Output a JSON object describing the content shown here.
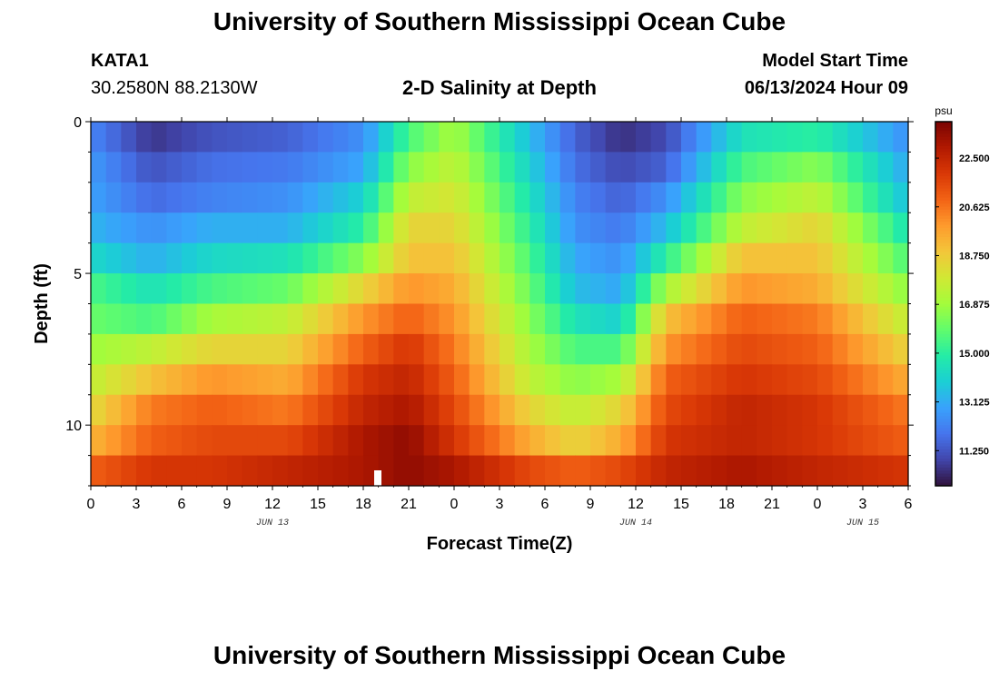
{
  "header": {
    "title": "University of Southern Mississippi Ocean Cube",
    "station": "KATA1",
    "coordinates": "30.2580N  88.2130W",
    "subtitle": "2-D Salinity at Depth",
    "model_start_label": "Model Start Time",
    "model_start_value": "06/13/2024 Hour 09"
  },
  "footer": {
    "title": "University of Southern Mississippi Ocean Cube"
  },
  "chart_data": {
    "type": "heatmap",
    "title": "2-D Salinity at Depth",
    "xlabel": "Forecast Time(Z)",
    "ylabel": "Depth (ft)",
    "x_range_hours": [
      0,
      54
    ],
    "y_range_ft": [
      0,
      12
    ],
    "x_ticks": [
      {
        "hour": 0,
        "label": "0"
      },
      {
        "hour": 3,
        "label": "3"
      },
      {
        "hour": 6,
        "label": "6"
      },
      {
        "hour": 9,
        "label": "9"
      },
      {
        "hour": 12,
        "label": "12"
      },
      {
        "hour": 15,
        "label": "15"
      },
      {
        "hour": 18,
        "label": "18"
      },
      {
        "hour": 21,
        "label": "21"
      },
      {
        "hour": 24,
        "label": "0"
      },
      {
        "hour": 27,
        "label": "3"
      },
      {
        "hour": 30,
        "label": "6"
      },
      {
        "hour": 33,
        "label": "9"
      },
      {
        "hour": 36,
        "label": "12"
      },
      {
        "hour": 39,
        "label": "15"
      },
      {
        "hour": 42,
        "label": "18"
      },
      {
        "hour": 45,
        "label": "21"
      },
      {
        "hour": 48,
        "label": "0"
      },
      {
        "hour": 51,
        "label": "3"
      },
      {
        "hour": 54,
        "label": "6"
      }
    ],
    "date_labels": [
      {
        "hour": 12,
        "label": "JUN 13"
      },
      {
        "hour": 36,
        "label": "JUN 14"
      },
      {
        "hour": 51,
        "label": "JUN 15"
      }
    ],
    "y_ticks": [
      {
        "depth": 0,
        "label": "0"
      },
      {
        "depth": 5,
        "label": "5"
      },
      {
        "depth": 10,
        "label": "10"
      }
    ],
    "colorbar": {
      "unit": "psu",
      "min": 9.9,
      "max": 23.9,
      "ticks": [
        "22.500",
        "20.625",
        "18.750",
        "16.875",
        "15.000",
        "13.125",
        "11.250"
      ],
      "colors": [
        "#30123b",
        "#4145ab",
        "#4675ed",
        "#39a2fc",
        "#1bcfd4",
        "#24eca6",
        "#61fc6c",
        "#a4fc3b",
        "#d1e834",
        "#f3c63a",
        "#fe9b2d",
        "#f36315",
        "#d93806",
        "#b11901",
        "#7a0403"
      ]
    },
    "depth_layers_ft": [
      0.5,
      1.5,
      2.5,
      3.5,
      4.5,
      5.5,
      6.5,
      7.5,
      8.5,
      9.5,
      10.5,
      11.5
    ],
    "time_nodes_hours": [
      0,
      4,
      8,
      13,
      18,
      21,
      24,
      29,
      32,
      35,
      38,
      43,
      48,
      54
    ],
    "salinity_psu": [
      [
        12.3,
        10.6,
        11.2,
        11.5,
        12.5,
        15.5,
        17.0,
        13.5,
        11.5,
        10.5,
        11.0,
        14.5,
        15.0,
        12.5
      ],
      [
        12.7,
        11.2,
        11.8,
        12.0,
        13.0,
        16.5,
        17.5,
        14.0,
        11.8,
        11.0,
        11.5,
        15.5,
        16.5,
        13.0
      ],
      [
        12.9,
        11.7,
        12.2,
        12.5,
        14.0,
        17.5,
        18.0,
        14.5,
        12.2,
        11.5,
        12.5,
        16.5,
        17.5,
        13.5
      ],
      [
        13.3,
        12.5,
        13.2,
        13.2,
        15.0,
        18.5,
        18.5,
        15.0,
        12.5,
        12.0,
        13.5,
        17.5,
        18.5,
        14.5
      ],
      [
        14.2,
        13.2,
        14.2,
        14.5,
        16.5,
        19.0,
        19.0,
        15.5,
        13.0,
        12.5,
        15.0,
        19.0,
        19.0,
        15.5
      ],
      [
        15.5,
        14.5,
        15.5,
        16.0,
        18.5,
        20.0,
        19.5,
        16.0,
        13.5,
        13.0,
        17.0,
        20.0,
        19.5,
        16.5
      ],
      [
        16.0,
        15.5,
        17.0,
        17.5,
        20.0,
        21.0,
        20.0,
        16.5,
        14.5,
        14.0,
        19.0,
        21.0,
        20.5,
        17.5
      ],
      [
        16.8,
        17.5,
        18.5,
        18.5,
        21.0,
        22.0,
        20.5,
        17.0,
        15.5,
        15.5,
        20.0,
        21.5,
        21.0,
        18.5
      ],
      [
        17.5,
        19.0,
        20.0,
        19.5,
        22.0,
        22.5,
        21.0,
        17.5,
        16.5,
        17.0,
        21.0,
        22.0,
        21.5,
        19.5
      ],
      [
        18.3,
        20.5,
        21.0,
        20.5,
        22.5,
        23.0,
        21.5,
        18.5,
        17.5,
        18.5,
        21.5,
        22.5,
        22.0,
        20.5
      ],
      [
        19.3,
        21.0,
        21.5,
        21.5,
        23.0,
        23.5,
        22.0,
        19.5,
        18.5,
        19.5,
        22.0,
        22.5,
        22.0,
        21.0
      ],
      [
        21.0,
        22.0,
        22.0,
        22.5,
        23.0,
        23.5,
        23.0,
        21.5,
        21.0,
        21.5,
        22.5,
        23.0,
        22.5,
        22.0
      ]
    ]
  }
}
